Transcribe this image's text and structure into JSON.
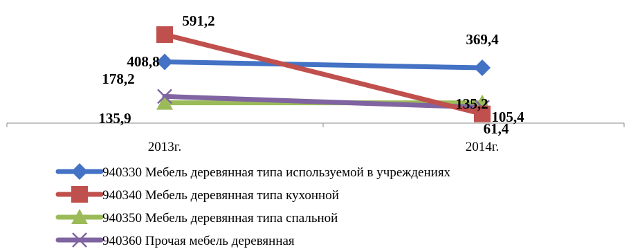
{
  "chart_data": {
    "type": "line",
    "categories": [
      "2013г.",
      "2014г."
    ],
    "series": [
      {
        "name": "940330 Мебель деревянная типа используемой в учреждениях",
        "values": [
          408.8,
          369.4
        ],
        "labels": [
          "408,8",
          "369,4"
        ],
        "color": "#4472c4",
        "marker": "diamond"
      },
      {
        "name": "940340 Мебель деревянная типа кухонной",
        "values": [
          591.2,
          61.4
        ],
        "labels": [
          "591,2",
          "61,4"
        ],
        "color": "#c0504d",
        "marker": "square"
      },
      {
        "name": "940350 Мебель деревянная типа спальной",
        "values": [
          135.9,
          135.2
        ],
        "labels": [
          "135,9",
          "135,2"
        ],
        "color": "#9bbb59",
        "marker": "triangle"
      },
      {
        "name": "940360 Прочая мебель деревянная",
        "values": [
          178.2,
          105.4
        ],
        "labels": [
          "178,2",
          "105,4"
        ],
        "color": "#8064a2",
        "marker": "x"
      }
    ],
    "legend_position": "bottom",
    "grid": false
  }
}
